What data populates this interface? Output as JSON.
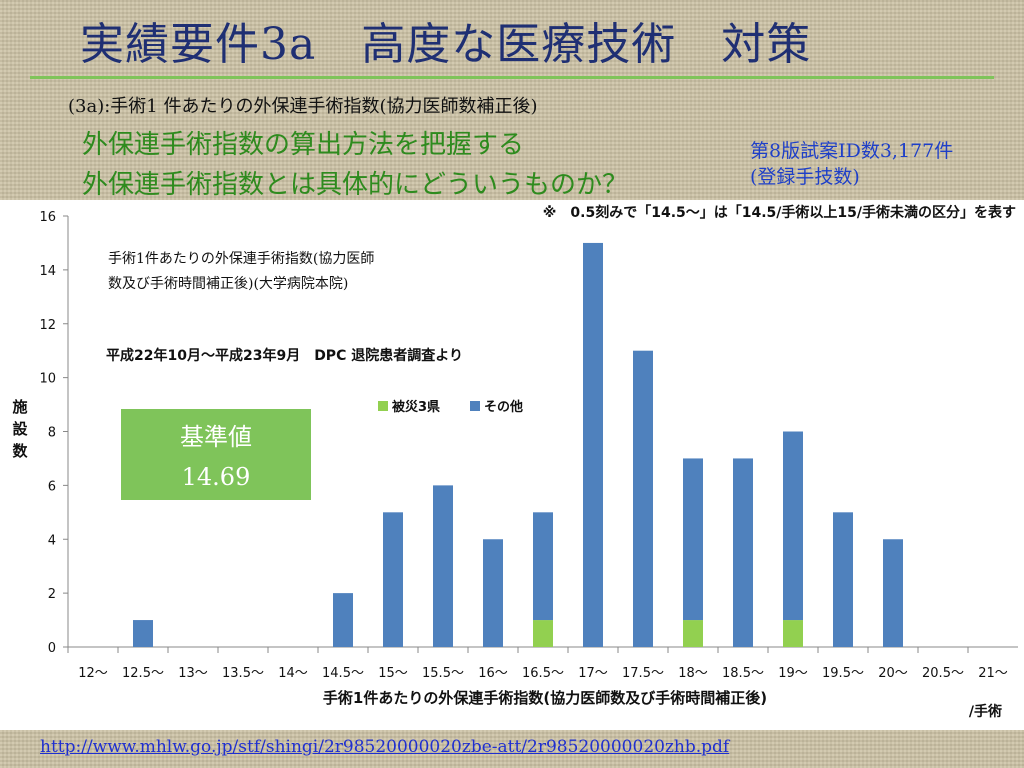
{
  "slide": {
    "title": "実績要件3a　高度な医療技術　対策",
    "subheading": "(3a):手術1 件あたりの外保連手術指数(協力医師数補正後)",
    "green_line_1": "外保連手術指数の算出方法を把握する",
    "green_line_2": "外保連手術指数とは具体的にどういうものか？",
    "blue_note_1": "第8版試案ID数3,177件",
    "blue_note_2": "(登録手技数)",
    "footer_link": "http://www.mhlw.go.jp/stf/shingi/2r98520000020zbe-att/2r98520000020zhb.pdf"
  },
  "colors": {
    "title": "#1f2f73",
    "title_rule": "#7fc45a",
    "green_text": "#2e8b1e",
    "blue_text": "#1e3fc8",
    "series_other": "#4f81bd",
    "series_disaster": "#92d050",
    "callout_box": "#7fc45a"
  },
  "chart_data": {
    "type": "bar",
    "stacked": true,
    "note": "※　0.5刻みで「14.5～」は「14.5/手術以上15/手術未満の区分」を表す",
    "inner_title_1": "手術1件あたりの外保連手術指数(協力医師",
    "inner_title_2": "数及び手術時間補正後)(大学病院本院)",
    "period_label": "平成22年10月～平成23年9月　DPC 退院患者調査より",
    "xlabel": "手術1件あたりの外保連手術指数(協力医師数及び手術時間補正後)",
    "x_unit": "/手術",
    "ylabel": "施設数",
    "ylim": [
      0,
      16
    ],
    "y_ticks": [
      "0",
      "2",
      "4",
      "6",
      "8",
      "10",
      "12",
      "14",
      "16"
    ],
    "grid": false,
    "legend_position": "center-right",
    "categories": [
      "12～",
      "12.5～",
      "13～",
      "13.5～",
      "14～",
      "14.5～",
      "15～",
      "15.5～",
      "16～",
      "16.5～",
      "17～",
      "17.5～",
      "18～",
      "18.5～",
      "19～",
      "19.5～",
      "20～",
      "20.5～",
      "21～"
    ],
    "series": [
      {
        "name": "被災3県",
        "color": "#92d050",
        "values": [
          0,
          0,
          0,
          0,
          0,
          0,
          0,
          0,
          0,
          1,
          0,
          0,
          1,
          0,
          1,
          0,
          0,
          0,
          0
        ]
      },
      {
        "name": "その他",
        "color": "#4f81bd",
        "values": [
          0,
          1,
          0,
          0,
          0,
          2,
          5,
          6,
          4,
          4,
          15,
          11,
          6,
          7,
          7,
          5,
          4,
          0,
          0
        ]
      }
    ],
    "callout_label": "基準値",
    "callout_value": "14.69"
  }
}
